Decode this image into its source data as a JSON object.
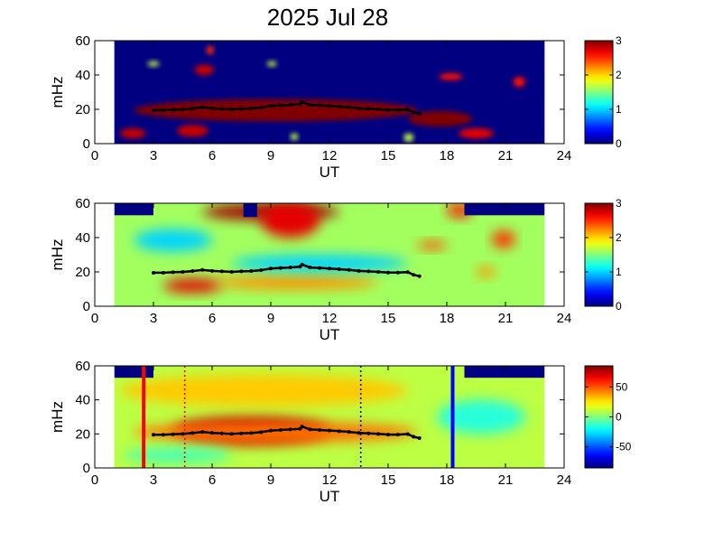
{
  "title": "2025 Jul 28",
  "colors": {
    "dark_blue": "#00008f",
    "dark_red": "#800000",
    "ridge_black": "#000000",
    "event_red": "#ff0000",
    "event_blue": "#0000ff"
  },
  "chart_data": [
    {
      "type": "heatmap",
      "panel": "top",
      "xlabel": "UT",
      "ylabel": "mHz",
      "xlim": [
        0,
        24
      ],
      "ylim": [
        0,
        60
      ],
      "xticks": [
        "0",
        "3",
        "6",
        "9",
        "12",
        "15",
        "18",
        "21",
        "24"
      ],
      "yticks": [
        "0",
        "20",
        "40",
        "60"
      ],
      "data_span_ut": [
        1.0,
        23.0
      ],
      "background_value": 0,
      "colorbar": {
        "min": 0,
        "max": 3,
        "ticks": [
          "0",
          "1",
          "2",
          "3"
        ]
      },
      "blobs": [
        {
          "ut": [
            2.0,
            16.5
          ],
          "mhz": [
            13,
            26
          ],
          "value": 3,
          "note": "main band"
        },
        {
          "ut": [
            16.0,
            19.3
          ],
          "mhz": [
            10,
            19
          ],
          "value": 3
        },
        {
          "ut": [
            1.3,
            2.6
          ],
          "mhz": [
            3,
            9
          ],
          "value": 2.8
        },
        {
          "ut": [
            4.2,
            5.8
          ],
          "mhz": [
            4,
            11
          ],
          "value": 2.8
        },
        {
          "ut": [
            18.6,
            20.4
          ],
          "mhz": [
            3,
            9
          ],
          "value": 2.7
        },
        {
          "ut": [
            5.1,
            6.1
          ],
          "mhz": [
            40,
            46
          ],
          "value": 2.8
        },
        {
          "ut": [
            5.7,
            6.1
          ],
          "mhz": [
            52,
            57
          ],
          "value": 2.5
        },
        {
          "ut": [
            17.6,
            18.8
          ],
          "mhz": [
            37,
            41
          ],
          "value": 2.6
        },
        {
          "ut": [
            21.4,
            22.0
          ],
          "mhz": [
            33,
            39
          ],
          "value": 2.6
        },
        {
          "ut": [
            2.7,
            3.3
          ],
          "mhz": [
            45,
            48
          ],
          "value": 1.7
        },
        {
          "ut": [
            8.8,
            9.3
          ],
          "mhz": [
            45,
            48
          ],
          "value": 1.7
        },
        {
          "ut": [
            10.0,
            10.4
          ],
          "mhz": [
            2,
            6
          ],
          "value": 1.7
        },
        {
          "ut": [
            15.8,
            16.3
          ],
          "mhz": [
            1,
            6
          ],
          "value": 1.7
        }
      ]
    },
    {
      "type": "heatmap",
      "panel": "middle",
      "xlabel": "UT",
      "ylabel": "mHz",
      "xlim": [
        0,
        24
      ],
      "ylim": [
        0,
        60
      ],
      "xticks": [
        "0",
        "3",
        "6",
        "9",
        "12",
        "15",
        "18",
        "21",
        "24"
      ],
      "yticks": [
        "0",
        "20",
        "40",
        "60"
      ],
      "data_span_ut": [
        1.0,
        23.0
      ],
      "background_value": 1.6,
      "colorbar": {
        "min": 0,
        "max": 3,
        "ticks": [
          "0",
          "1",
          "2",
          "3"
        ]
      },
      "blobs": [
        {
          "ut": [
            5.5,
            12.5
          ],
          "mhz": [
            50,
            60
          ],
          "value": 2.9
        },
        {
          "ut": [
            8.5,
            11.5
          ],
          "mhz": [
            40,
            60
          ],
          "value": 2.7
        },
        {
          "ut": [
            3.5,
            6.5
          ],
          "mhz": [
            8,
            16
          ],
          "value": 2.7
        },
        {
          "ut": [
            6.0,
            14.5
          ],
          "mhz": [
            10,
            18
          ],
          "value": 2.2
        },
        {
          "ut": [
            7.0,
            16.0
          ],
          "mhz": [
            20,
            30
          ],
          "value": 1.0
        },
        {
          "ut": [
            2.0,
            6.0
          ],
          "mhz": [
            32,
            45
          ],
          "value": 1.0
        },
        {
          "ut": [
            16.5,
            18.0
          ],
          "mhz": [
            33,
            38
          ],
          "value": 2.4
        },
        {
          "ut": [
            20.3,
            21.5
          ],
          "mhz": [
            34,
            44
          ],
          "value": 2.5
        },
        {
          "ut": [
            19.5,
            20.5
          ],
          "mhz": [
            17,
            23
          ],
          "value": 2.2
        },
        {
          "ut": [
            18.0,
            19.3
          ],
          "mhz": [
            52,
            60
          ],
          "value": 2.6
        }
      ]
    },
    {
      "type": "heatmap",
      "panel": "bottom",
      "xlabel": "UT",
      "ylabel": "mHz",
      "xlim": [
        0,
        24
      ],
      "ylim": [
        0,
        60
      ],
      "xticks": [
        "0",
        "3",
        "6",
        "9",
        "12",
        "15",
        "18",
        "21",
        "24"
      ],
      "yticks": [
        "0",
        "20",
        "40",
        "60"
      ],
      "data_span_ut": [
        1.0,
        23.0
      ],
      "background_value": 10,
      "colorbar": {
        "min": -85,
        "max": 85,
        "ticks": [
          "-50",
          "0",
          "50"
        ]
      },
      "blobs": [
        {
          "ut": [
            4.0,
            12.0
          ],
          "mhz": [
            14,
            30
          ],
          "value": 75
        },
        {
          "ut": [
            2.0,
            16.5
          ],
          "mhz": [
            15,
            27
          ],
          "value": 45
        },
        {
          "ut": [
            1.3,
            16.0
          ],
          "mhz": [
            36,
            55
          ],
          "value": 30
        },
        {
          "ut": [
            1.5,
            7.0
          ],
          "mhz": [
            3,
            12
          ],
          "value": -10
        },
        {
          "ut": [
            17.5,
            22.0
          ],
          "mhz": [
            20,
            40
          ],
          "value": -15
        }
      ],
      "event_lines": [
        {
          "ut": 2.5,
          "style": "solid",
          "color": "red"
        },
        {
          "ut": 4.6,
          "style": "dotted",
          "color": "red"
        },
        {
          "ut": 13.6,
          "style": "dotted",
          "color": "blue"
        },
        {
          "ut": 18.3,
          "style": "solid",
          "color": "blue"
        }
      ]
    }
  ],
  "ridge_line": {
    "ut": [
      3.0,
      3.5,
      4.0,
      4.5,
      5.0,
      5.5,
      6.0,
      6.5,
      7.0,
      7.5,
      8.0,
      8.5,
      9.0,
      9.5,
      10.0,
      10.5,
      10.6,
      11.0,
      11.5,
      12.0,
      12.5,
      13.0,
      13.5,
      14.0,
      14.5,
      15.0,
      15.5,
      16.0,
      16.3,
      16.6
    ],
    "mhz": [
      19.5,
      19.5,
      19.8,
      20.0,
      20.5,
      21.2,
      20.6,
      20.3,
      20.0,
      20.3,
      20.5,
      21.0,
      22.0,
      22.3,
      22.6,
      23.0,
      24.3,
      22.6,
      22.3,
      22.0,
      21.6,
      21.2,
      20.6,
      20.3,
      20.0,
      19.6,
      19.6,
      19.9,
      18.3,
      17.5
    ]
  }
}
